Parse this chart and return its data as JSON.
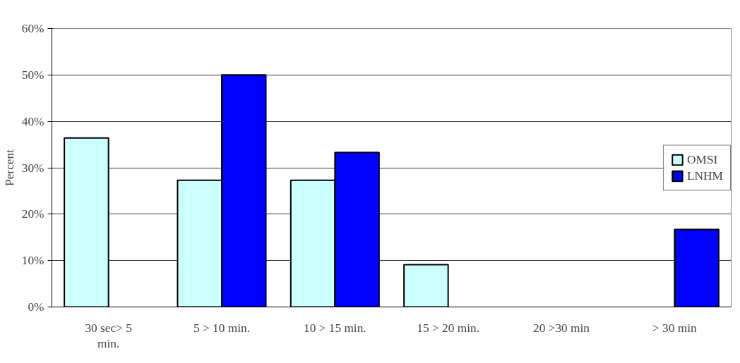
{
  "chart_data": {
    "type": "bar",
    "ylabel": "Percent",
    "categories": [
      "30 sec> 5 min.",
      "5 > 10 min.",
      "10 > 15 min.",
      "15 > 20 min.",
      "20 >30 min",
      "> 30 min"
    ],
    "series": [
      {
        "name": "OMSI",
        "color": "#ccffff",
        "values": [
          36.4,
          27.3,
          27.3,
          9.1,
          null,
          null
        ]
      },
      {
        "name": "LNHM",
        "color": "#0000ff",
        "values": [
          null,
          50,
          33.3,
          null,
          null,
          16.7
        ]
      }
    ],
    "ylim": [
      0,
      60
    ],
    "yticks": [
      {
        "value": 0,
        "label": "0%"
      },
      {
        "value": 10,
        "label": "10%"
      },
      {
        "value": 20,
        "label": "20%"
      },
      {
        "value": 30,
        "label": "30%"
      },
      {
        "value": 40,
        "label": "40%"
      },
      {
        "value": 50,
        "label": "50%"
      },
      {
        "value": 60,
        "label": "60%"
      }
    ],
    "grid": "y",
    "legend": "right"
  }
}
